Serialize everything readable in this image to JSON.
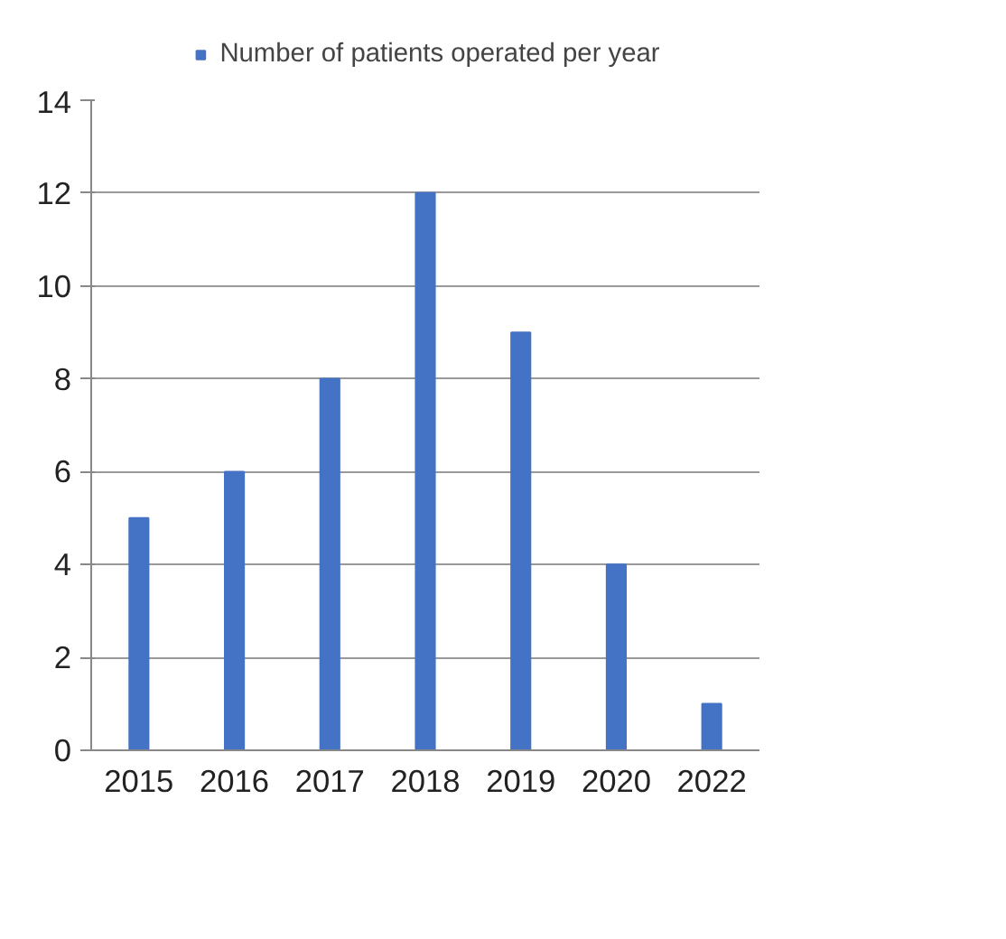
{
  "chart_data": {
    "type": "bar",
    "categories": [
      "2015",
      "2016",
      "2017",
      "2018",
      "2019",
      "2020",
      "2022"
    ],
    "series": [
      {
        "name": "Number of patients operated per year",
        "color": "#4472c4",
        "values": [
          5,
          6,
          8,
          12,
          9,
          4,
          1
        ]
      }
    ],
    "ylim": [
      0,
      14
    ],
    "yticks": [
      0,
      2,
      4,
      6,
      8,
      10,
      12,
      14
    ],
    "grid": "y",
    "legend": "top"
  }
}
